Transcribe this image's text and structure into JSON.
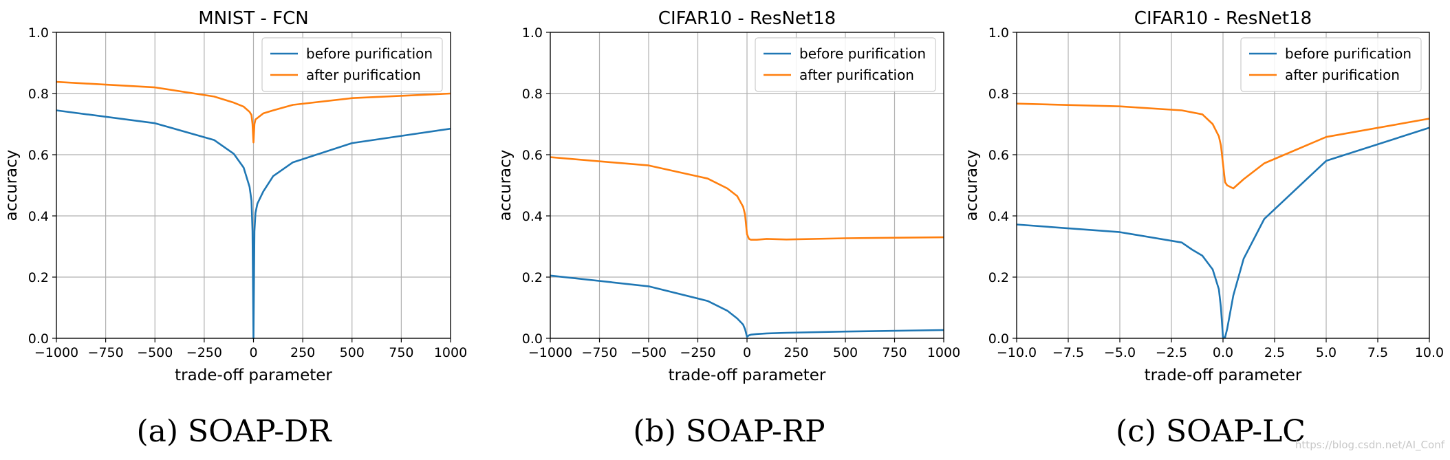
{
  "colors": {
    "before": "#1f77b4",
    "after": "#ff7f0e"
  },
  "watermark": "https://blog.csdn.net/AI_Conf",
  "chart_data": [
    {
      "type": "line",
      "title": "MNIST - FCN",
      "caption": "(a) SOAP-DR",
      "xlabel": "trade-off parameter",
      "ylabel": "accuracy",
      "xlim": [
        -1000,
        1000
      ],
      "ylim": [
        0,
        1
      ],
      "xticks": [
        -1000,
        -750,
        -500,
        -250,
        0,
        250,
        500,
        750,
        1000
      ],
      "xtick_labels": [
        "−1000",
        "−750",
        "−500",
        "−250",
        "0",
        "250",
        "500",
        "750",
        "1000"
      ],
      "yticks": [
        0,
        0.2,
        0.4,
        0.6,
        0.8,
        1.0
      ],
      "ytick_labels": [
        "0.0",
        "0.2",
        "0.4",
        "0.6",
        "0.8",
        "1.0"
      ],
      "grid": true,
      "legend": "top-right",
      "series": [
        {
          "name": "before purification",
          "x": [
            -1000,
            -500,
            -200,
            -100,
            -50,
            -20,
            -10,
            -5,
            0,
            5,
            10,
            20,
            50,
            100,
            200,
            500,
            1000
          ],
          "y": [
            0.745,
            0.703,
            0.648,
            0.603,
            0.558,
            0.495,
            0.45,
            0.35,
            0.0,
            0.35,
            0.41,
            0.44,
            0.48,
            0.53,
            0.575,
            0.638,
            0.685
          ]
        },
        {
          "name": "after purification",
          "x": [
            -1000,
            -500,
            -200,
            -100,
            -50,
            -20,
            -10,
            -5,
            0,
            5,
            10,
            20,
            50,
            100,
            200,
            500,
            1000
          ],
          "y": [
            0.838,
            0.82,
            0.79,
            0.77,
            0.757,
            0.74,
            0.73,
            0.7,
            0.64,
            0.7,
            0.715,
            0.72,
            0.735,
            0.745,
            0.763,
            0.785,
            0.8
          ]
        }
      ]
    },
    {
      "type": "line",
      "title": "CIFAR10 - ResNet18",
      "caption": "(b) SOAP-RP",
      "xlabel": "trade-off parameter",
      "ylabel": "accuracy",
      "xlim": [
        -1000,
        1000
      ],
      "ylim": [
        0,
        1
      ],
      "xticks": [
        -1000,
        -750,
        -500,
        -250,
        0,
        250,
        500,
        750,
        1000
      ],
      "xtick_labels": [
        "−1000",
        "−750",
        "−500",
        "−250",
        "0",
        "250",
        "500",
        "750",
        "1000"
      ],
      "yticks": [
        0,
        0.2,
        0.4,
        0.6,
        0.8,
        1.0
      ],
      "ytick_labels": [
        "0.0",
        "0.2",
        "0.4",
        "0.6",
        "0.8",
        "1.0"
      ],
      "grid": true,
      "legend": "top-right",
      "series": [
        {
          "name": "before purification",
          "x": [
            -1000,
            -500,
            -200,
            -100,
            -50,
            -20,
            -10,
            0,
            10,
            20,
            50,
            100,
            200,
            500,
            1000
          ],
          "y": [
            0.205,
            0.17,
            0.122,
            0.09,
            0.065,
            0.045,
            0.03,
            0.005,
            0.01,
            0.012,
            0.014,
            0.016,
            0.018,
            0.022,
            0.027
          ]
        },
        {
          "name": "after purification",
          "x": [
            -1000,
            -500,
            -200,
            -100,
            -50,
            -20,
            -10,
            0,
            10,
            20,
            50,
            100,
            200,
            500,
            1000
          ],
          "y": [
            0.592,
            0.565,
            0.522,
            0.49,
            0.465,
            0.43,
            0.405,
            0.34,
            0.325,
            0.322,
            0.322,
            0.325,
            0.323,
            0.327,
            0.33
          ]
        }
      ]
    },
    {
      "type": "line",
      "title": "CIFAR10 - ResNet18",
      "caption": "(c) SOAP-LC",
      "xlabel": "trade-off parameter",
      "ylabel": "accuracy",
      "xlim": [
        -10,
        10
      ],
      "ylim": [
        0,
        1
      ],
      "xticks": [
        -10,
        -7.5,
        -5,
        -2.5,
        0,
        2.5,
        5,
        7.5,
        10
      ],
      "xtick_labels": [
        "−10.0",
        "−7.5",
        "−5.0",
        "−2.5",
        "0.0",
        "2.5",
        "5.0",
        "7.5",
        "10.0"
      ],
      "yticks": [
        0,
        0.2,
        0.4,
        0.6,
        0.8,
        1.0
      ],
      "ytick_labels": [
        "0.0",
        "0.2",
        "0.4",
        "0.6",
        "0.8",
        "1.0"
      ],
      "grid": true,
      "legend": "top-right",
      "series": [
        {
          "name": "before purification",
          "x": [
            -10,
            -5,
            -2,
            -1.5,
            -1,
            -0.5,
            -0.2,
            -0.1,
            0,
            0.1,
            0.2,
            0.5,
            1,
            2,
            5,
            10
          ],
          "y": [
            0.372,
            0.347,
            0.313,
            0.29,
            0.27,
            0.225,
            0.16,
            0.1,
            0.003,
            0.003,
            0.03,
            0.14,
            0.26,
            0.39,
            0.58,
            0.688
          ]
        },
        {
          "name": "after purification",
          "x": [
            -10,
            -5,
            -2,
            -1,
            -0.5,
            -0.2,
            -0.1,
            0,
            0.1,
            0.2,
            0.5,
            1,
            2,
            5,
            10
          ],
          "y": [
            0.767,
            0.758,
            0.745,
            0.732,
            0.7,
            0.66,
            0.63,
            0.57,
            0.51,
            0.5,
            0.49,
            0.52,
            0.572,
            0.658,
            0.718
          ]
        }
      ]
    }
  ]
}
